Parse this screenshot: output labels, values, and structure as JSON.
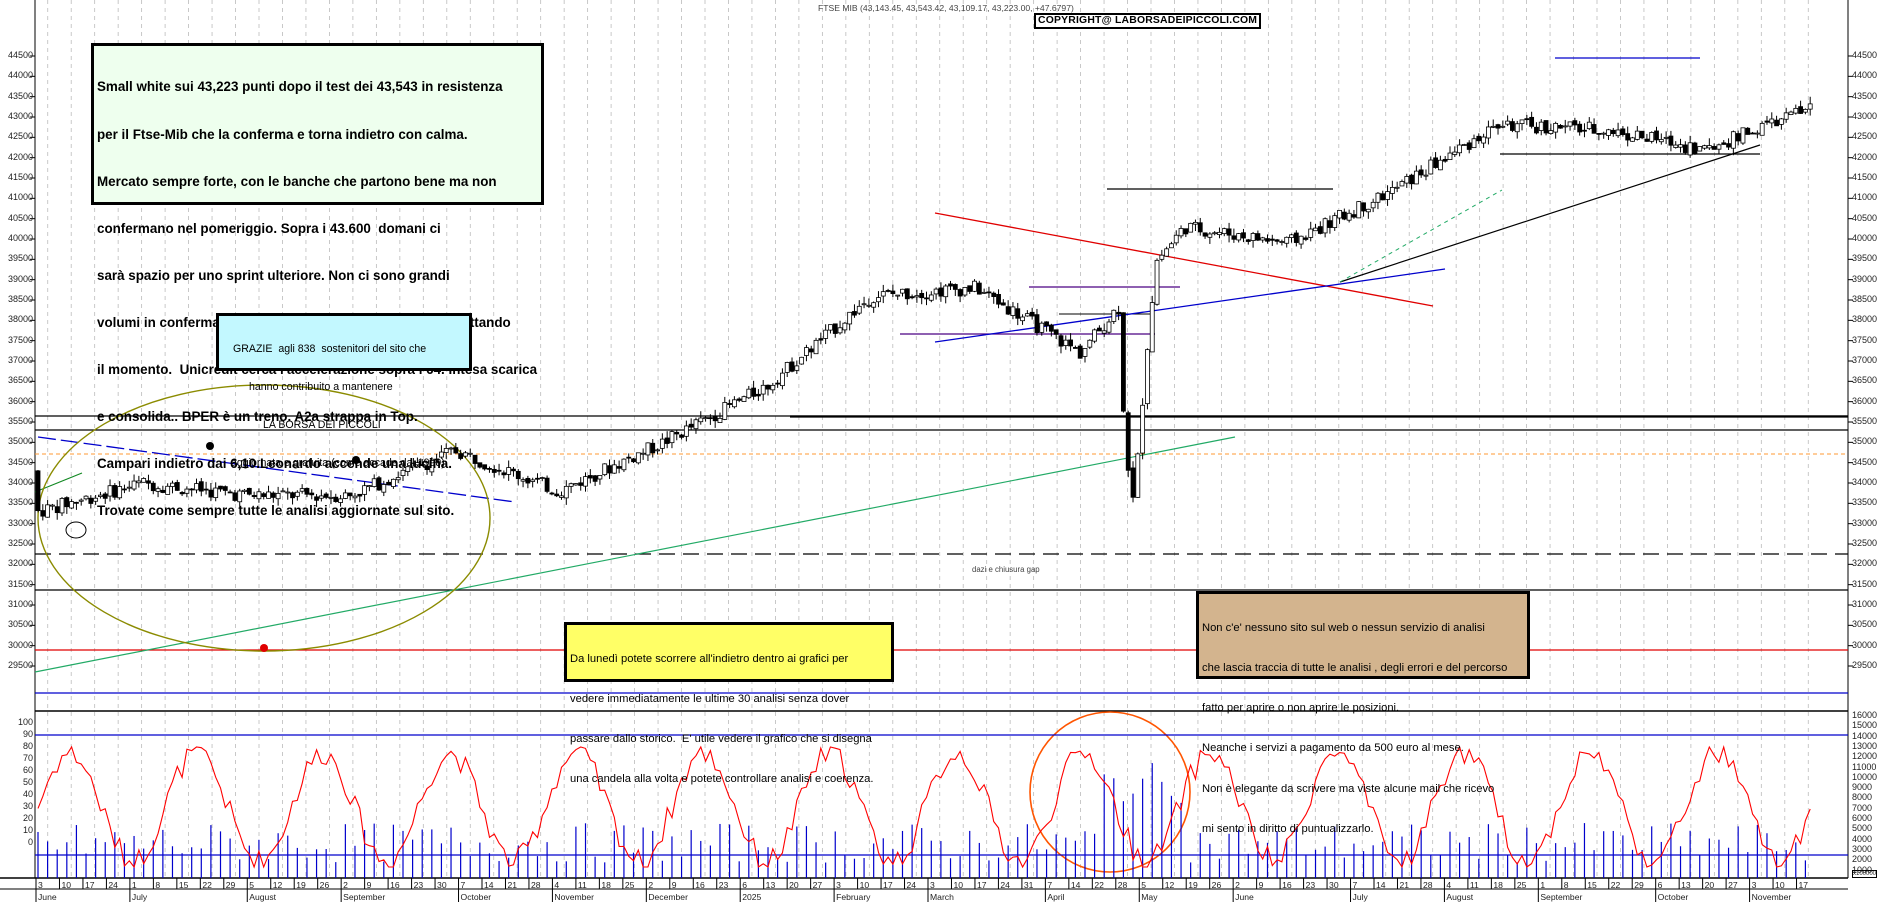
{
  "header": {
    "title": "FTSE MIB (43,143.45, 43,543.42, 43,109.17, 43,223.00, +47.6797)",
    "copyright": "COPYRIGHT@ LABORSADEIPICCOLI.COM"
  },
  "comment_box": {
    "lines": [
      "Small white sui 43,223 punti dopo il test dei 43,543 in resistenza",
      "per il Ftse-Mib che la conferma e torna indietro con calma.",
      "Mercato sempre forte, con le banche che partono bene ma non",
      "confermano nel pomeriggio. Sopra i 43.600  domani ci",
      "sarà spazio per uno sprint ulteriore. Non ci sono grandi",
      "volumi in conferma ma per ora seguiamo con serenità sfruttando",
      "il momento.  Unicredit cerca l'accelerazione sopra i 64. Intesa scarica",
      "e consolida.. BPER è un treno. A2a strappa in Top.",
      "Campari indietro dai 6,10.Leonardo accende una lucina.",
      "Trovate come sempre tutte le analisi aggiornate sul sito."
    ]
  },
  "thanks_box": {
    "lines": [
      "GRAZIE  agli 838  sostenitori del sito che",
      "hanno contribuito a mantenere",
      "LA BORSA DEI PICCOLI",
      "aggiornata e gratuita (come accade dal 1999)"
    ]
  },
  "notice_box": {
    "lines": [
      "Da lunedì potete scorrere all'indietro dentro ai grafici per",
      "vedere immediatamente le ultime 30 analisi senza dover",
      "passare dallo storico.  E' utile vedere il grafico che si disegna",
      "una candela alla volta e potete controllare analisi e coerenza."
    ]
  },
  "disclaimer_box": {
    "lines": [
      "Non c'e' nessuno sito sul web o nessun servizio di analisi",
      "che lascia traccia di tutte le analisi , degli errori e del percorso",
      "fatto per aprire o non aprire le posizioni.",
      "Neanche i servizi a pagamento da 500 euro al mese.",
      "Non è elegante da scrivere ma viste alcune mail che ricevo",
      "mi sento in diritto di puntualizzarlo."
    ]
  },
  "annotations": {
    "gap_label": "dazi e chiusura gap",
    "markers": [
      "1",
      "2",
      "1"
    ]
  },
  "colors": {
    "resistance_red": "#e00000",
    "trend_blue": "#0000cc",
    "trend_green": "#22aa66",
    "ellipse_olive": "#8b8b00",
    "support_orange": "#ff9933",
    "purple": "#4b0082",
    "oscillator_red": "#ff0000",
    "volume_blue": "#0000cc",
    "highlight_circle": "#ff5500"
  },
  "axes": {
    "price_ticks": [
      "44500",
      "44000",
      "43500",
      "43000",
      "42500",
      "42000",
      "41500",
      "41000",
      "40500",
      "40000",
      "39500",
      "39000",
      "38500",
      "38000",
      "37500",
      "37000",
      "36500",
      "36000",
      "35500",
      "35000",
      "34500",
      "34000",
      "33500",
      "33000",
      "32500",
      "32000",
      "31500",
      "31000",
      "30500",
      "30000",
      "29500"
    ],
    "osc_ticks": [
      "100",
      "90",
      "80",
      "70",
      "60",
      "50",
      "40",
      "30",
      "20",
      "10",
      "0"
    ],
    "volume_ticks": [
      "16000",
      "15000",
      "14000",
      "13000",
      "12000",
      "11000",
      "10000",
      "9000",
      "8000",
      "7000",
      "6000",
      "5000",
      "4000",
      "3000",
      "2000",
      "1000"
    ],
    "volume_unit": "x100000",
    "x_days": [
      "3",
      "10",
      "17",
      "24",
      "1",
      "8",
      "15",
      "22",
      "29",
      "5",
      "12",
      "19",
      "26",
      "2",
      "9",
      "16",
      "23",
      "30",
      "7",
      "14",
      "21",
      "28",
      "4",
      "11",
      "18",
      "25",
      "2",
      "9",
      "16",
      "23",
      "6",
      "13",
      "20",
      "27",
      "3",
      "10",
      "17",
      "24",
      "3",
      "10",
      "17",
      "24",
      "31",
      "7",
      "14",
      "22",
      "28",
      "5",
      "12",
      "19",
      "26",
      "2",
      "9",
      "16",
      "23",
      "30",
      "7",
      "14",
      "21",
      "28",
      "4",
      "11",
      "18",
      "25",
      "1",
      "8",
      "15",
      "22",
      "29",
      "6",
      "13",
      "20",
      "27",
      "3",
      "10",
      "17"
    ],
    "x_months": [
      "June",
      "July",
      "August",
      "September",
      "October",
      "November",
      "December",
      "2025",
      "February",
      "March",
      "April",
      "May",
      "June",
      "July",
      "August",
      "September",
      "October",
      "November"
    ]
  },
  "chart_data": {
    "type": "candlestick",
    "title": "FTSE MIB (43,143.45, 43,543.42, 43,109.17, 43,223.00, +47.6797)",
    "last_bar": {
      "open": 43143.45,
      "high": 43543.42,
      "low": 43109.17,
      "close": 43223.0,
      "change": 47.6797
    },
    "xlabel": "",
    "ylabel": "",
    "ylim": [
      29500,
      44800
    ],
    "x_range": [
      "2024-06-03",
      "2025-11-17"
    ],
    "grid": true,
    "approx_monthly_close": {
      "categories": [
        "Jun-24",
        "Jul-24",
        "Aug-24",
        "Sep-24",
        "Oct-24",
        "Nov-24",
        "Dec-24",
        "Jan-25",
        "Feb-25",
        "Mar-25",
        "Apr-25",
        "May-25",
        "Jun-25",
        "Jul-25",
        "Aug-25",
        "Sep-25",
        "Oct-25",
        "Nov-25"
      ],
      "values": [
        33300,
        34000,
        33700,
        33700,
        34800,
        33800,
        35000,
        36400,
        38600,
        38800,
        37200,
        40300,
        39900,
        41200,
        42800,
        42700,
        42200,
        43223
      ]
    },
    "horizontal_levels": [
      {
        "price": 35800,
        "color": "#000000",
        "style": "solid"
      },
      {
        "price": 35550,
        "color": "#000000",
        "style": "solid"
      },
      {
        "price": 34950,
        "color": "#ff9933",
        "style": "dashed"
      },
      {
        "price": 32800,
        "color": "#000000",
        "style": "dashed"
      },
      {
        "price": 32000,
        "color": "#000000",
        "style": "solid"
      },
      {
        "price": 30700,
        "color": "#e00000",
        "style": "solid"
      },
      {
        "price": 29750,
        "color": "#0000cc",
        "style": "solid"
      },
      {
        "price": 40750,
        "color": "#000000",
        "style": "solid",
        "span": "May-Jul 2025"
      },
      {
        "price": 41500,
        "color": "#000000",
        "style": "solid",
        "span": "Aug-Nov 2025"
      },
      {
        "price": 43550,
        "color": "#0000cc",
        "style": "solid",
        "span": "Aug-Oct 2025"
      },
      {
        "price": 38600,
        "color": "#4b0082",
        "style": "solid",
        "span": "Mar-May 2025"
      },
      {
        "price": 37550,
        "color": "#4b0082",
        "style": "solid",
        "span": "Feb-Apr 2025"
      }
    ],
    "oscillator": {
      "type": "line",
      "ylim": [
        0,
        100
      ],
      "reference_lines": [
        90,
        10
      ],
      "last_value": 78
    },
    "volume": {
      "type": "bar",
      "unit": "x100000",
      "ylim": [
        0,
        16000
      ]
    }
  }
}
